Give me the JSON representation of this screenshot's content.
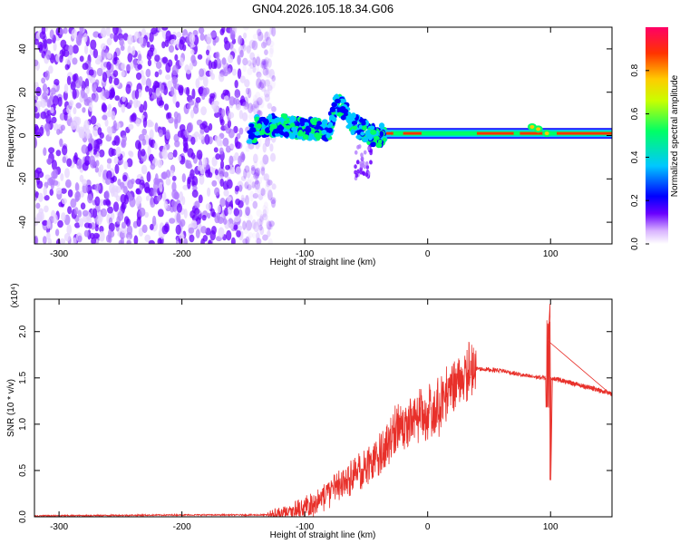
{
  "title": "GN04.2026.105.18.34.G06",
  "chart_data": [
    {
      "type": "heatmap",
      "name": "spectrogram",
      "title": "GN04.2026.105.18.34.G06",
      "xlabel": "Height of straight line (km)",
      "ylabel": "Frequency (Hz)",
      "xlim": [
        -320,
        150
      ],
      "ylim": [
        -50,
        50
      ],
      "xticks": [
        -300,
        -200,
        -100,
        0,
        100
      ],
      "yticks": [
        -40,
        -20,
        0,
        20,
        40
      ],
      "colorbar": {
        "label": "Normalized spectral amplitude",
        "range": [
          0.0,
          1.0
        ],
        "ticks": [
          0.0,
          0.2,
          0.4,
          0.6,
          0.8
        ],
        "colors": [
          "#ffffff",
          "#d9b3ff",
          "#6a00ff",
          "#0000ff",
          "#00c8ff",
          "#00ff66",
          "#c8ff00",
          "#ffcc00",
          "#ff3300",
          "#ff0066"
        ]
      },
      "noise_region": {
        "x_from": -320,
        "x_to": -135,
        "amplitude": 0.15
      },
      "signal_ridge": [
        {
          "x": -140,
          "y": 4
        },
        {
          "x": -120,
          "y": 5
        },
        {
          "x": -100,
          "y": 3
        },
        {
          "x": -80,
          "y": 3
        },
        {
          "x": -74,
          "y": 16
        },
        {
          "x": -60,
          "y": 5
        },
        {
          "x": -45,
          "y": 0
        },
        {
          "x": -30,
          "y": 0
        },
        {
          "x": 0,
          "y": 1
        },
        {
          "x": 50,
          "y": 1
        },
        {
          "x": 88,
          "y": 3
        },
        {
          "x": 100,
          "y": 1
        },
        {
          "x": 150,
          "y": 1
        }
      ],
      "scatter_tail": [
        {
          "x": -50,
          "y": -15
        },
        {
          "x": -48,
          "y": -20
        }
      ]
    },
    {
      "type": "line",
      "name": "snr",
      "xlabel": "Height of straight line (km)",
      "ylabel": "SNR (10 * v/v)",
      "y_multiplier": "(x10⁴)",
      "xlim": [
        -320,
        150
      ],
      "ylim": [
        0,
        2.35
      ],
      "xticks": [
        -300,
        -200,
        -100,
        0,
        100
      ],
      "yticks": [
        0.0,
        0.5,
        1.0,
        1.5,
        2.0
      ],
      "color": "#e8302a",
      "envelope": [
        {
          "x": -320,
          "y": 0.01
        },
        {
          "x": -200,
          "y": 0.02
        },
        {
          "x": -130,
          "y": 0.02
        },
        {
          "x": -110,
          "y": 0.06
        },
        {
          "x": -90,
          "y": 0.15
        },
        {
          "x": -70,
          "y": 0.35
        },
        {
          "x": -50,
          "y": 0.55
        },
        {
          "x": -40,
          "y": 0.65
        },
        {
          "x": -25,
          "y": 0.95
        },
        {
          "x": -10,
          "y": 1.05
        },
        {
          "x": 0,
          "y": 1.1
        },
        {
          "x": 10,
          "y": 1.2
        },
        {
          "x": 20,
          "y": 1.4
        },
        {
          "x": 30,
          "y": 1.55
        },
        {
          "x": 40,
          "y": 1.6
        },
        {
          "x": 60,
          "y": 1.58
        },
        {
          "x": 80,
          "y": 1.52
        },
        {
          "x": 95,
          "y": 1.5
        },
        {
          "x": 100,
          "y": 1.5
        },
        {
          "x": 110,
          "y": 1.47
        },
        {
          "x": 130,
          "y": 1.4
        },
        {
          "x": 150,
          "y": 1.33
        }
      ],
      "spike": [
        {
          "x": 98,
          "y": 1.9
        },
        {
          "x": 99.5,
          "y": 2.3
        },
        {
          "x": 100.3,
          "y": 0.4
        },
        {
          "x": 101.5,
          "y": 1.5
        }
      ]
    }
  ]
}
